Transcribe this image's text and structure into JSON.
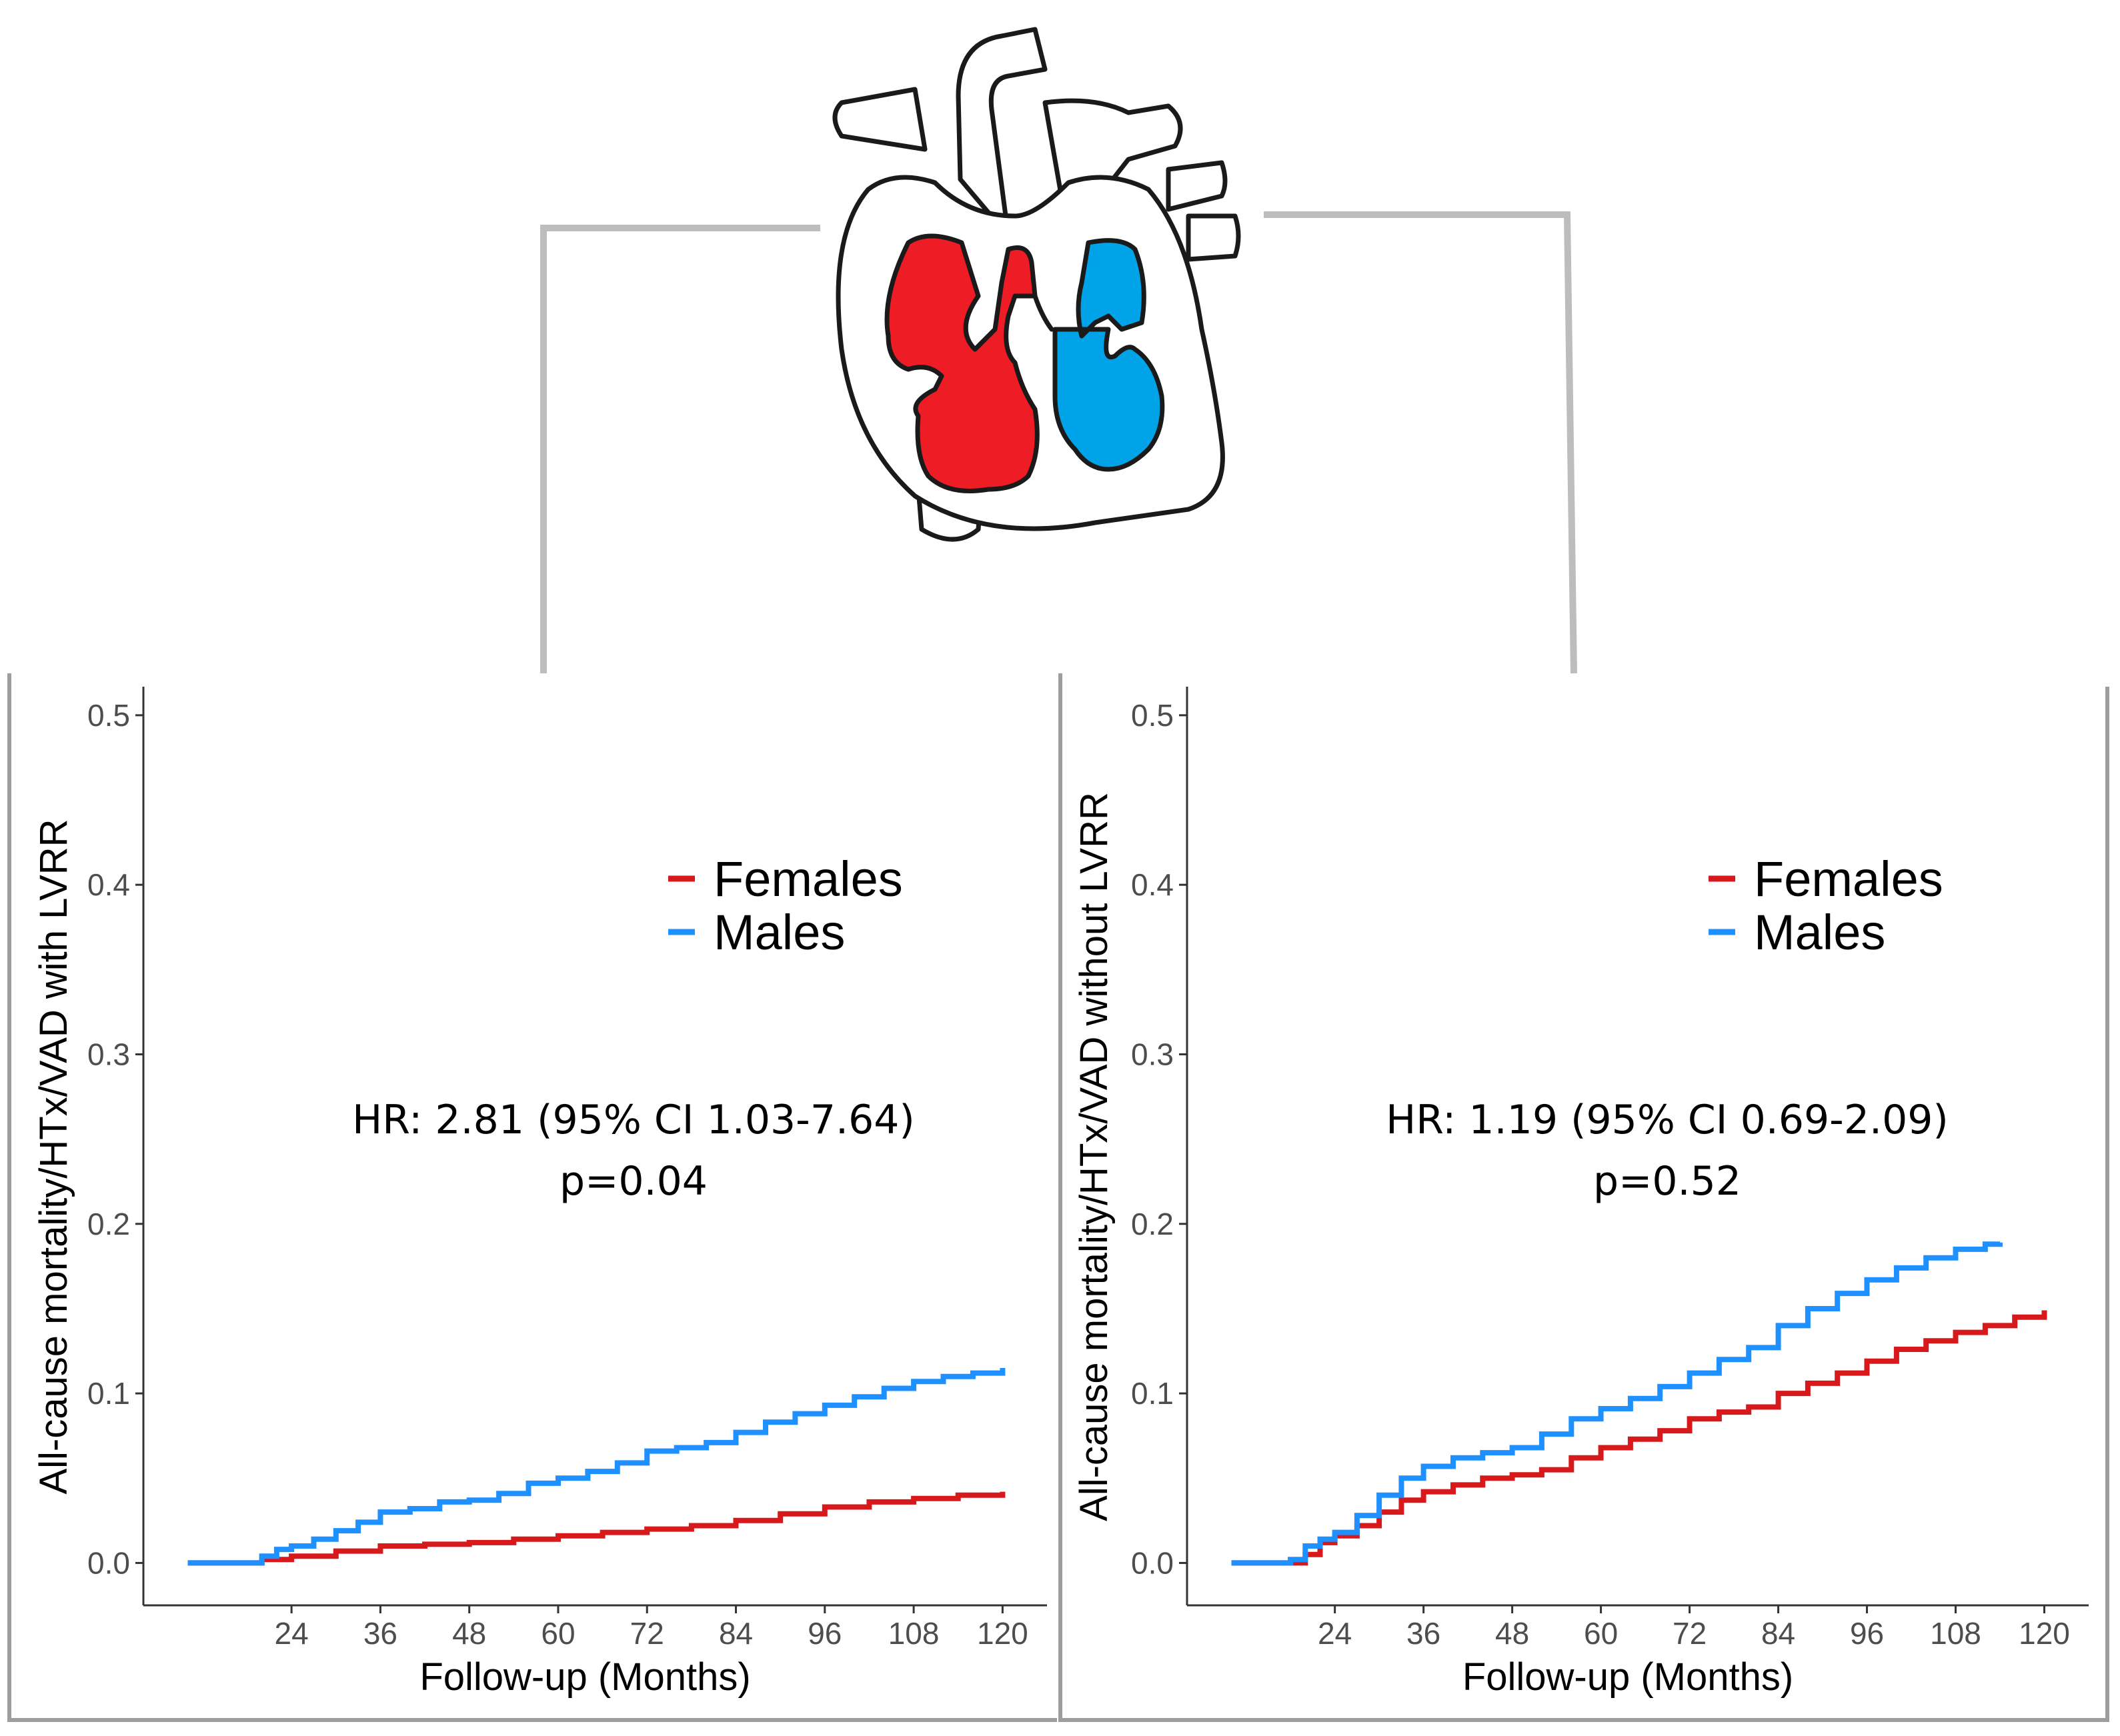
{
  "figure": {
    "illustration": "heart-icon",
    "colors": {
      "females": "#d7191c",
      "males": "#1e90ff",
      "connector": "#bdbdbd",
      "heart_red": "#ee1c25",
      "heart_blue": "#00a2e8"
    }
  },
  "chart_data": [
    {
      "type": "line",
      "step": true,
      "xlabel": "Follow-up (Months)",
      "ylabel": "All-cause mortality/HTx/VAD with LVRR",
      "xticks": [
        24,
        36,
        48,
        60,
        72,
        84,
        96,
        108,
        120
      ],
      "yticks": [
        "0.0",
        "0.1",
        "0.2",
        "0.3",
        "0.4",
        "0.5"
      ],
      "xlim": [
        4,
        126
      ],
      "ylim": [
        -0.025,
        0.52
      ],
      "legend": {
        "position": "top-right",
        "entries": [
          "Females",
          "Males"
        ]
      },
      "annotation": {
        "hr": "HR: 2.81 (95% CI 1.03-7.64)",
        "p": "p=0.04"
      },
      "series": [
        {
          "name": "Females",
          "color": "#d7191c",
          "x": [
            10,
            18,
            20,
            24,
            30,
            36,
            42,
            48,
            54,
            60,
            66,
            72,
            78,
            84,
            90,
            96,
            102,
            108,
            114,
            120
          ],
          "y": [
            0,
            0,
            0.002,
            0.004,
            0.007,
            0.01,
            0.011,
            0.012,
            0.014,
            0.016,
            0.018,
            0.02,
            0.022,
            0.025,
            0.029,
            0.033,
            0.036,
            0.038,
            0.04,
            0.042
          ]
        },
        {
          "name": "Males",
          "color": "#1e90ff",
          "x": [
            10,
            14,
            18,
            20,
            22,
            24,
            27,
            30,
            33,
            36,
            40,
            44,
            48,
            52,
            56,
            60,
            64,
            68,
            72,
            76,
            80,
            84,
            88,
            92,
            96,
            100,
            104,
            108,
            112,
            116,
            120
          ],
          "y": [
            0,
            0,
            0,
            0.004,
            0.008,
            0.01,
            0.014,
            0.019,
            0.024,
            0.03,
            0.032,
            0.036,
            0.037,
            0.041,
            0.047,
            0.05,
            0.054,
            0.059,
            0.066,
            0.068,
            0.071,
            0.077,
            0.083,
            0.088,
            0.093,
            0.098,
            0.103,
            0.107,
            0.11,
            0.112,
            0.115
          ]
        }
      ]
    },
    {
      "type": "line",
      "step": true,
      "xlabel": "Follow-up (Months)",
      "ylabel": "All-cause mortality/HTx/VAD without LVRR",
      "xticks": [
        24,
        36,
        48,
        60,
        72,
        84,
        96,
        108,
        120
      ],
      "yticks": [
        "0.0",
        "0.1",
        "0.2",
        "0.3",
        "0.4",
        "0.5"
      ],
      "xlim": [
        4,
        126
      ],
      "ylim": [
        -0.025,
        0.52
      ],
      "legend": {
        "position": "top-right",
        "entries": [
          "Females",
          "Males"
        ]
      },
      "annotation": {
        "hr": "HR: 1.19 (95% CI 0.69-2.09)",
        "p": "p=0.52"
      },
      "series": [
        {
          "name": "Females",
          "color": "#d7191c",
          "x": [
            10,
            18,
            20,
            22,
            24,
            27,
            30,
            33,
            36,
            40,
            44,
            48,
            52,
            56,
            60,
            64,
            68,
            72,
            76,
            80,
            84,
            88,
            92,
            96,
            100,
            104,
            108,
            112,
            116,
            120
          ],
          "y": [
            0,
            0,
            0.005,
            0.012,
            0.016,
            0.022,
            0.03,
            0.037,
            0.042,
            0.046,
            0.05,
            0.052,
            0.055,
            0.062,
            0.068,
            0.073,
            0.078,
            0.085,
            0.089,
            0.092,
            0.1,
            0.106,
            0.112,
            0.119,
            0.126,
            0.131,
            0.136,
            0.14,
            0.145,
            0.149
          ]
        },
        {
          "name": "Males",
          "color": "#1e90ff",
          "x": [
            10,
            14,
            18,
            20,
            22,
            24,
            27,
            30,
            33,
            36,
            40,
            44,
            48,
            52,
            56,
            60,
            64,
            68,
            72,
            76,
            80,
            84,
            88,
            92,
            96,
            100,
            104,
            108,
            112,
            114
          ],
          "y": [
            0,
            0,
            0.002,
            0.01,
            0.014,
            0.018,
            0.028,
            0.04,
            0.05,
            0.057,
            0.062,
            0.065,
            0.068,
            0.076,
            0.085,
            0.091,
            0.097,
            0.104,
            0.112,
            0.12,
            0.127,
            0.14,
            0.15,
            0.159,
            0.167,
            0.174,
            0.18,
            0.185,
            0.188,
            0.189
          ]
        }
      ]
    }
  ]
}
